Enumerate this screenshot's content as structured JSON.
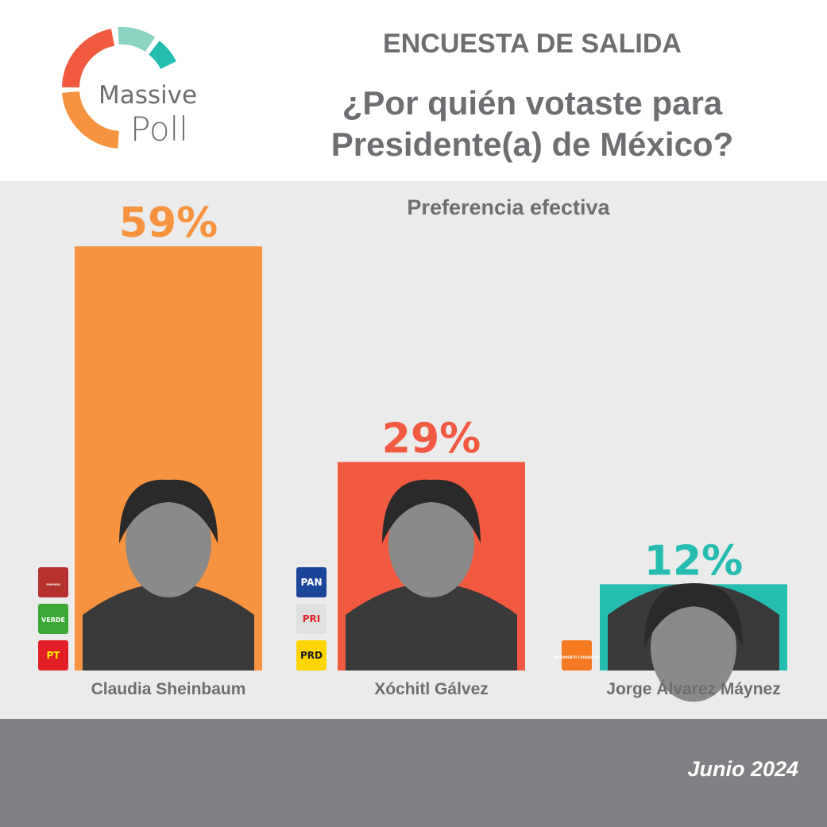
{
  "brand": {
    "line1": "Massive",
    "line2": "Poll"
  },
  "kicker": "ENCUESTA DE SALIDA",
  "question": "¿Por quién votaste para Presidente(a) de México?",
  "date": "Junio 2024",
  "chart_data": {
    "type": "bar",
    "subtitle": "Preferencia efectiva",
    "categories": [
      "Claudia Sheinbaum",
      "Xóchitl Gálvez",
      "Jorge Álvarez Máynez"
    ],
    "values": [
      59,
      29,
      12
    ],
    "value_labels": [
      "59%",
      "29%",
      "12%"
    ],
    "colors": [
      "#f7923e",
      "#f15a40",
      "#25bdb2"
    ],
    "party_logos": [
      [
        {
          "label": "morena",
          "color": "#b5322f",
          "text_color": "#ffffff"
        },
        {
          "label": "VERDE",
          "color": "#3aa935",
          "text_color": "#ffffff"
        },
        {
          "label": "PT",
          "color": "#e21f26",
          "text_color": "#fff200"
        }
      ],
      [
        {
          "label": "PAN",
          "color": "#1a4598",
          "text_color": "#ffffff"
        },
        {
          "label": "PRI",
          "color": "#e0e0e0",
          "text_color": "#e21f26"
        },
        {
          "label": "PRD",
          "color": "#ffd500",
          "text_color": "#1a1a1a"
        }
      ],
      [
        {
          "label": "MOVIMIENTO CIUDADANO",
          "color": "#f47920",
          "text_color": "#ffffff"
        }
      ]
    ],
    "grid": false,
    "legend": "none"
  }
}
